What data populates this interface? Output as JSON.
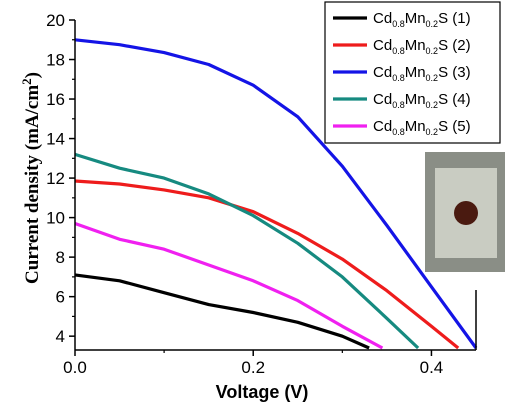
{
  "chart_data": {
    "type": "line",
    "xlabel": "Voltage (V)",
    "ylabel": {
      "text": "Current density (mA/cm",
      "superscript": "2",
      "suffix": ")"
    },
    "xlim": [
      0.0,
      0.45
    ],
    "ylim": [
      3.3,
      20.0
    ],
    "x_ticks": [
      0.0,
      0.2,
      0.4
    ],
    "x_tick_labels": [
      "0.0",
      "0.2",
      "0.4"
    ],
    "y_ticks": [
      4,
      6,
      8,
      10,
      12,
      14,
      16,
      18,
      20
    ],
    "y_tick_labels": [
      "4",
      "6",
      "8",
      "10",
      "12",
      "14",
      "16",
      "18",
      "20"
    ],
    "grid": false,
    "legend_position": "top-right",
    "series": [
      {
        "name": "Cd0.8Mn0.2S (1)",
        "legend": {
          "base1": "Cd",
          "sub1": "0.8",
          "base2": "Mn",
          "sub2": "0.2",
          "base3": "S",
          "suffix": " (1)"
        },
        "color": "#000000",
        "x": [
          0.0,
          0.05,
          0.1,
          0.15,
          0.2,
          0.25,
          0.3,
          0.33
        ],
        "y": [
          7.1,
          6.8,
          6.2,
          5.6,
          5.2,
          4.7,
          4.0,
          3.4
        ]
      },
      {
        "name": "Cd0.8Mn0.2S (2)",
        "legend": {
          "base1": "Cd",
          "sub1": "0.8",
          "base2": "Mn",
          "sub2": "0.2",
          "base3": "S",
          "suffix": " (2)"
        },
        "color": "#ee1c1c",
        "x": [
          0.0,
          0.05,
          0.1,
          0.15,
          0.2,
          0.25,
          0.3,
          0.35,
          0.4,
          0.43
        ],
        "y": [
          11.85,
          11.7,
          11.4,
          11.0,
          10.3,
          9.2,
          7.9,
          6.3,
          4.5,
          3.4
        ]
      },
      {
        "name": "Cd0.8Mn0.2S (3)",
        "legend": {
          "base1": "Cd",
          "sub1": "0.8",
          "base2": "Mn",
          "sub2": "0.2",
          "base3": "S",
          "suffix": " (3)"
        },
        "color": "#1414e6",
        "x": [
          0.0,
          0.05,
          0.1,
          0.15,
          0.2,
          0.25,
          0.3,
          0.35,
          0.4,
          0.45
        ],
        "y": [
          19.0,
          18.75,
          18.35,
          17.75,
          16.7,
          15.1,
          12.6,
          9.6,
          6.5,
          3.4
        ]
      },
      {
        "name": "Cd0.8Mn0.2S (4)",
        "legend": {
          "base1": "Cd",
          "sub1": "0.8",
          "base2": "Mn",
          "sub2": "0.2",
          "base3": "S",
          "suffix": " (4)"
        },
        "color": "#168a80",
        "x": [
          0.0,
          0.05,
          0.1,
          0.15,
          0.2,
          0.25,
          0.3,
          0.35,
          0.385
        ],
        "y": [
          13.2,
          12.5,
          12.0,
          11.2,
          10.1,
          8.7,
          7.0,
          4.9,
          3.4
        ]
      },
      {
        "name": "Cd0.8Mn0.2S (5)",
        "legend": {
          "base1": "Cd",
          "sub1": "0.8",
          "base2": "Mn",
          "sub2": "0.2",
          "base3": "S",
          "suffix": " (5)"
        },
        "color": "#f020f0",
        "x": [
          0.0,
          0.05,
          0.1,
          0.15,
          0.2,
          0.25,
          0.3,
          0.345
        ],
        "y": [
          9.7,
          8.9,
          8.4,
          7.6,
          6.8,
          5.8,
          4.5,
          3.4
        ]
      }
    ],
    "inset_photo": {
      "frame_color": "#8a8e86",
      "plate_color": "#c9ccc2",
      "spot_color": "#4a1a10"
    }
  }
}
